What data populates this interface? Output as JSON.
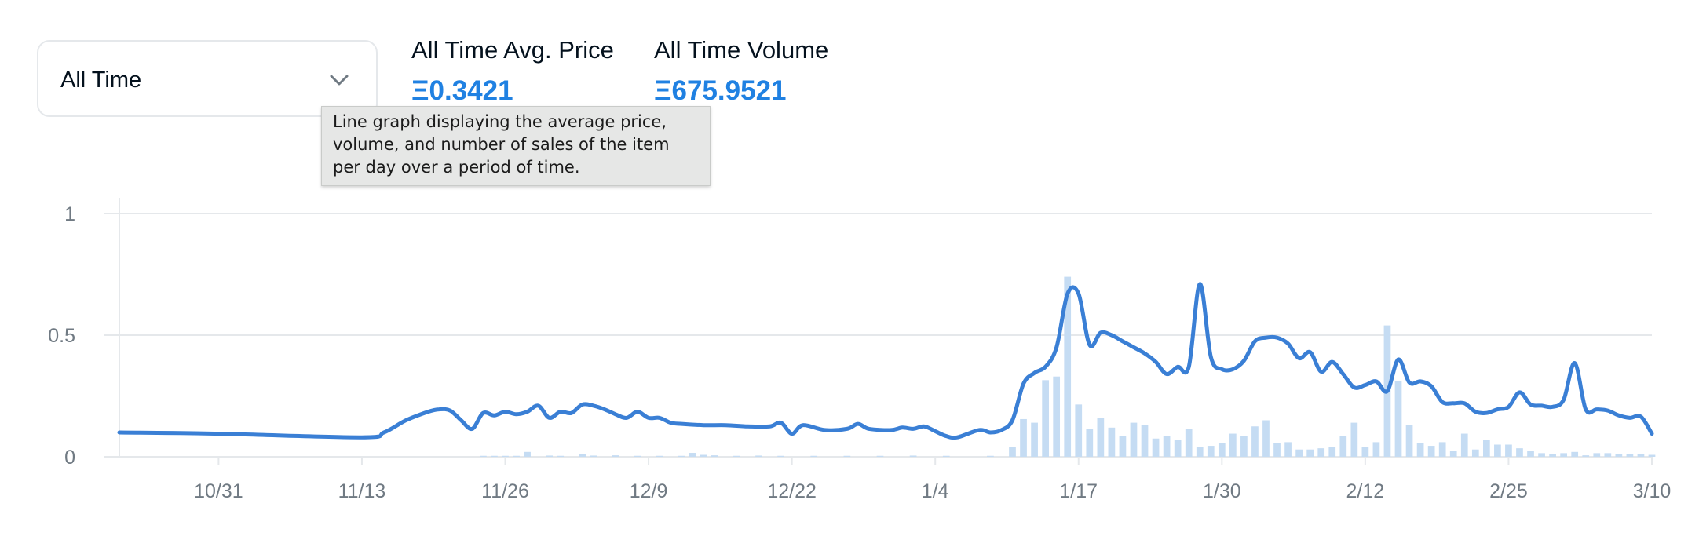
{
  "filter": {
    "selected": "All Time",
    "chevron_icon": "chevron-down-icon"
  },
  "stats": {
    "avg_price_label": "All Time Avg. Price",
    "avg_price_value": "Ξ0.3421",
    "volume_label": "All Time Volume",
    "volume_value": "Ξ675.9521"
  },
  "tooltip": {
    "text": "Line graph displaying the average price, volume, and number of sales of the item per day over a period of time."
  },
  "colors": {
    "line": "#3a7fd5",
    "bar": "#c5dcf3",
    "grid": "#e5e8eb",
    "accent": "#2081e2",
    "tick": "#707a83"
  },
  "chart_data": {
    "type": "line",
    "ylim": [
      0,
      1
    ],
    "yticks": [
      {
        "label": "0",
        "value": 0
      },
      {
        "label": "0.5",
        "value": 0.5
      },
      {
        "label": "1",
        "value": 1
      }
    ],
    "xticks": [
      {
        "label": "10/31",
        "date": "2021-10-31"
      },
      {
        "label": "11/13",
        "date": "2021-11-13"
      },
      {
        "label": "11/26",
        "date": "2021-11-26"
      },
      {
        "label": "12/9",
        "date": "2021-12-09"
      },
      {
        "label": "12/22",
        "date": "2021-12-22"
      },
      {
        "label": "1/4",
        "date": "2022-01-04"
      },
      {
        "label": "1/17",
        "date": "2022-01-17"
      },
      {
        "label": "1/30",
        "date": "2022-01-30"
      },
      {
        "label": "2/12",
        "date": "2022-02-12"
      },
      {
        "label": "2/25",
        "date": "2022-02-25"
      },
      {
        "label": "3/10",
        "date": "2022-03-10"
      }
    ],
    "xlim": [
      "2021-10-22",
      "2022-03-10"
    ],
    "grid": true,
    "series": [
      {
        "kind": "line",
        "points": [
          [
            "2021-10-22",
            0.1
          ],
          [
            "2021-10-31",
            0.095
          ],
          [
            "2021-11-13",
            0.08
          ],
          [
            "2021-11-15",
            0.1
          ],
          [
            "2021-11-17",
            0.15
          ],
          [
            "2021-11-19",
            0.185
          ],
          [
            "2021-11-20",
            0.195
          ],
          [
            "2021-11-21",
            0.19
          ],
          [
            "2021-11-22",
            0.15
          ],
          [
            "2021-11-23",
            0.115
          ],
          [
            "2021-11-24",
            0.18
          ],
          [
            "2021-11-25",
            0.17
          ],
          [
            "2021-11-26",
            0.185
          ],
          [
            "2021-11-27",
            0.175
          ],
          [
            "2021-11-28",
            0.185
          ],
          [
            "2021-11-29",
            0.21
          ],
          [
            "2021-11-30",
            0.16
          ],
          [
            "2021-12-01",
            0.185
          ],
          [
            "2021-12-02",
            0.18
          ],
          [
            "2021-12-03",
            0.215
          ],
          [
            "2021-12-04",
            0.21
          ],
          [
            "2021-12-05",
            0.195
          ],
          [
            "2021-12-06",
            0.175
          ],
          [
            "2021-12-07",
            0.16
          ],
          [
            "2021-12-08",
            0.185
          ],
          [
            "2021-12-09",
            0.16
          ],
          [
            "2021-12-10",
            0.16
          ],
          [
            "2021-12-11",
            0.14
          ],
          [
            "2021-12-12",
            0.135
          ],
          [
            "2021-12-14",
            0.13
          ],
          [
            "2021-12-16",
            0.13
          ],
          [
            "2021-12-18",
            0.125
          ],
          [
            "2021-12-20",
            0.125
          ],
          [
            "2021-12-21",
            0.14
          ],
          [
            "2021-12-22",
            0.095
          ],
          [
            "2021-12-23",
            0.13
          ],
          [
            "2021-12-25",
            0.11
          ],
          [
            "2021-12-27",
            0.115
          ],
          [
            "2021-12-28",
            0.135
          ],
          [
            "2021-12-29",
            0.115
          ],
          [
            "2021-12-31",
            0.11
          ],
          [
            "2022-01-01",
            0.12
          ],
          [
            "2022-01-02",
            0.115
          ],
          [
            "2022-01-03",
            0.125
          ],
          [
            "2022-01-04",
            0.105
          ],
          [
            "2022-01-05",
            0.085
          ],
          [
            "2022-01-06",
            0.08
          ],
          [
            "2022-01-08",
            0.11
          ],
          [
            "2022-01-09",
            0.1
          ],
          [
            "2022-01-10",
            0.11
          ],
          [
            "2022-01-11",
            0.15
          ],
          [
            "2022-01-12",
            0.3
          ],
          [
            "2022-01-13",
            0.345
          ],
          [
            "2022-01-14",
            0.37
          ],
          [
            "2022-01-15",
            0.45
          ],
          [
            "2022-01-16",
            0.67
          ],
          [
            "2022-01-17",
            0.67
          ],
          [
            "2022-01-18",
            0.46
          ],
          [
            "2022-01-19",
            0.51
          ],
          [
            "2022-01-20",
            0.5
          ],
          [
            "2022-01-21",
            0.475
          ],
          [
            "2022-01-22",
            0.45
          ],
          [
            "2022-01-23",
            0.425
          ],
          [
            "2022-01-24",
            0.39
          ],
          [
            "2022-01-25",
            0.34
          ],
          [
            "2022-01-26",
            0.37
          ],
          [
            "2022-01-27",
            0.37
          ],
          [
            "2022-01-28",
            0.71
          ],
          [
            "2022-01-29",
            0.41
          ],
          [
            "2022-01-30",
            0.36
          ],
          [
            "2022-01-31",
            0.36
          ],
          [
            "2022-02-01",
            0.395
          ],
          [
            "2022-02-02",
            0.475
          ],
          [
            "2022-02-03",
            0.49
          ],
          [
            "2022-02-04",
            0.49
          ],
          [
            "2022-02-05",
            0.465
          ],
          [
            "2022-02-06",
            0.405
          ],
          [
            "2022-02-07",
            0.43
          ],
          [
            "2022-02-08",
            0.35
          ],
          [
            "2022-02-09",
            0.39
          ],
          [
            "2022-02-10",
            0.34
          ],
          [
            "2022-02-11",
            0.285
          ],
          [
            "2022-02-12",
            0.295
          ],
          [
            "2022-02-13",
            0.31
          ],
          [
            "2022-02-14",
            0.27
          ],
          [
            "2022-02-15",
            0.4
          ],
          [
            "2022-02-16",
            0.305
          ],
          [
            "2022-02-17",
            0.31
          ],
          [
            "2022-02-18",
            0.29
          ],
          [
            "2022-02-19",
            0.225
          ],
          [
            "2022-02-20",
            0.22
          ],
          [
            "2022-02-21",
            0.22
          ],
          [
            "2022-02-22",
            0.185
          ],
          [
            "2022-02-23",
            0.18
          ],
          [
            "2022-02-24",
            0.195
          ],
          [
            "2022-02-25",
            0.205
          ],
          [
            "2022-02-26",
            0.265
          ],
          [
            "2022-02-27",
            0.215
          ],
          [
            "2022-02-28",
            0.21
          ],
          [
            "2022-03-01",
            0.205
          ],
          [
            "2022-03-02",
            0.235
          ],
          [
            "2022-03-03",
            0.385
          ],
          [
            "2022-03-04",
            0.195
          ],
          [
            "2022-03-05",
            0.195
          ],
          [
            "2022-03-06",
            0.19
          ],
          [
            "2022-03-07",
            0.17
          ],
          [
            "2022-03-08",
            0.16
          ],
          [
            "2022-03-09",
            0.165
          ],
          [
            "2022-03-10",
            0.095
          ]
        ]
      },
      {
        "kind": "bar",
        "points": [
          [
            "2021-11-24",
            0.004
          ],
          [
            "2021-11-25",
            0.004
          ],
          [
            "2021-11-26",
            0.004
          ],
          [
            "2021-11-27",
            0.004
          ],
          [
            "2021-11-28",
            0.02
          ],
          [
            "2021-11-30",
            0.005
          ],
          [
            "2021-12-01",
            0.004
          ],
          [
            "2021-12-03",
            0.01
          ],
          [
            "2021-12-04",
            0.005
          ],
          [
            "2021-12-06",
            0.006
          ],
          [
            "2021-12-08",
            0.004
          ],
          [
            "2021-12-10",
            0.004
          ],
          [
            "2021-12-12",
            0.004
          ],
          [
            "2021-12-13",
            0.016
          ],
          [
            "2021-12-14",
            0.008
          ],
          [
            "2021-12-15",
            0.006
          ],
          [
            "2021-12-17",
            0.004
          ],
          [
            "2021-12-19",
            0.005
          ],
          [
            "2021-12-21",
            0.004
          ],
          [
            "2021-12-24",
            0.004
          ],
          [
            "2021-12-27",
            0.004
          ],
          [
            "2021-12-30",
            0.004
          ],
          [
            "2022-01-02",
            0.005
          ],
          [
            "2022-01-05",
            0.004
          ],
          [
            "2022-01-09",
            0.004
          ],
          [
            "2022-01-11",
            0.04
          ],
          [
            "2022-01-12",
            0.155
          ],
          [
            "2022-01-13",
            0.14
          ],
          [
            "2022-01-14",
            0.315
          ],
          [
            "2022-01-15",
            0.33
          ],
          [
            "2022-01-16",
            0.74
          ],
          [
            "2022-01-17",
            0.215
          ],
          [
            "2022-01-18",
            0.115
          ],
          [
            "2022-01-19",
            0.16
          ],
          [
            "2022-01-20",
            0.12
          ],
          [
            "2022-01-21",
            0.085
          ],
          [
            "2022-01-22",
            0.14
          ],
          [
            "2022-01-23",
            0.13
          ],
          [
            "2022-01-24",
            0.075
          ],
          [
            "2022-01-25",
            0.085
          ],
          [
            "2022-01-26",
            0.07
          ],
          [
            "2022-01-27",
            0.115
          ],
          [
            "2022-01-28",
            0.04
          ],
          [
            "2022-01-29",
            0.045
          ],
          [
            "2022-01-30",
            0.055
          ],
          [
            "2022-01-31",
            0.095
          ],
          [
            "2022-02-01",
            0.085
          ],
          [
            "2022-02-02",
            0.125
          ],
          [
            "2022-02-03",
            0.15
          ],
          [
            "2022-02-04",
            0.055
          ],
          [
            "2022-02-05",
            0.06
          ],
          [
            "2022-02-06",
            0.03
          ],
          [
            "2022-02-07",
            0.03
          ],
          [
            "2022-02-08",
            0.035
          ],
          [
            "2022-02-09",
            0.04
          ],
          [
            "2022-02-10",
            0.085
          ],
          [
            "2022-02-11",
            0.14
          ],
          [
            "2022-02-12",
            0.04
          ],
          [
            "2022-02-13",
            0.06
          ],
          [
            "2022-02-14",
            0.54
          ],
          [
            "2022-02-15",
            0.31
          ],
          [
            "2022-02-16",
            0.13
          ],
          [
            "2022-02-17",
            0.055
          ],
          [
            "2022-02-18",
            0.045
          ],
          [
            "2022-02-19",
            0.06
          ],
          [
            "2022-02-20",
            0.025
          ],
          [
            "2022-02-21",
            0.095
          ],
          [
            "2022-02-22",
            0.03
          ],
          [
            "2022-02-23",
            0.07
          ],
          [
            "2022-02-24",
            0.05
          ],
          [
            "2022-02-25",
            0.05
          ],
          [
            "2022-02-26",
            0.035
          ],
          [
            "2022-02-27",
            0.025
          ],
          [
            "2022-02-28",
            0.015
          ],
          [
            "2022-03-01",
            0.012
          ],
          [
            "2022-03-02",
            0.015
          ],
          [
            "2022-03-03",
            0.02
          ],
          [
            "2022-03-04",
            0.006
          ],
          [
            "2022-03-05",
            0.015
          ],
          [
            "2022-03-06",
            0.015
          ],
          [
            "2022-03-07",
            0.012
          ],
          [
            "2022-03-08",
            0.01
          ],
          [
            "2022-03-09",
            0.012
          ],
          [
            "2022-03-10",
            0.008
          ]
        ]
      }
    ]
  }
}
